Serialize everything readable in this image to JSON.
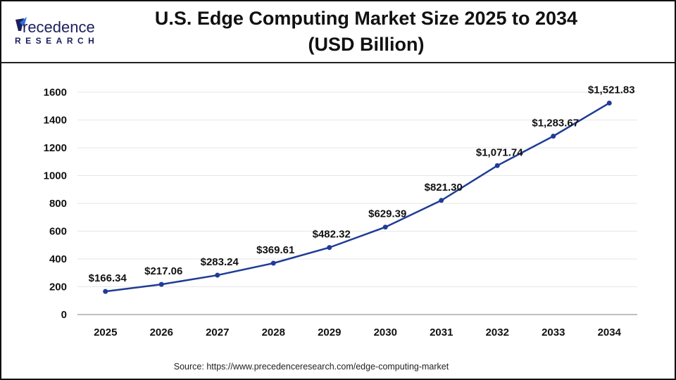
{
  "header": {
    "title_line1": "U.S. Edge Computing Market Size 2025 to 2034",
    "title_line2": "(USD Billion)",
    "logo_text_main": "Precedence",
    "logo_text_sub": "RESEARCH"
  },
  "source": "Source: https://www.precedenceresearch.com/edge-computing-market",
  "colors": {
    "line": "#1f3c96",
    "grid": "#e6e6e6",
    "axis": "#bfbfbf",
    "logo_dark": "#1b1f5c",
    "logo_blue": "#2f6fe0"
  },
  "chart_data": {
    "type": "line",
    "title": "U.S. Edge Computing Market Size 2025 to 2034 (USD Billion)",
    "categories": [
      "2025",
      "2026",
      "2027",
      "2028",
      "2029",
      "2030",
      "2031",
      "2032",
      "2033",
      "2034"
    ],
    "values": [
      166.34,
      217.06,
      283.24,
      369.61,
      482.32,
      629.39,
      821.3,
      1071.74,
      1283.67,
      1521.83
    ],
    "data_labels": [
      "$166.34",
      "$217.06",
      "$283.24",
      "$369.61",
      "$482.32",
      "$629.39",
      "$821.30",
      "$1,071.74",
      "$1,283.67",
      "$1,521.83"
    ],
    "yticks": [
      0,
      200,
      400,
      600,
      800,
      1000,
      1200,
      1400,
      1600
    ],
    "ylim": [
      0,
      1600
    ],
    "grid": true,
    "legend": "none",
    "xlabel": "",
    "ylabel": ""
  }
}
